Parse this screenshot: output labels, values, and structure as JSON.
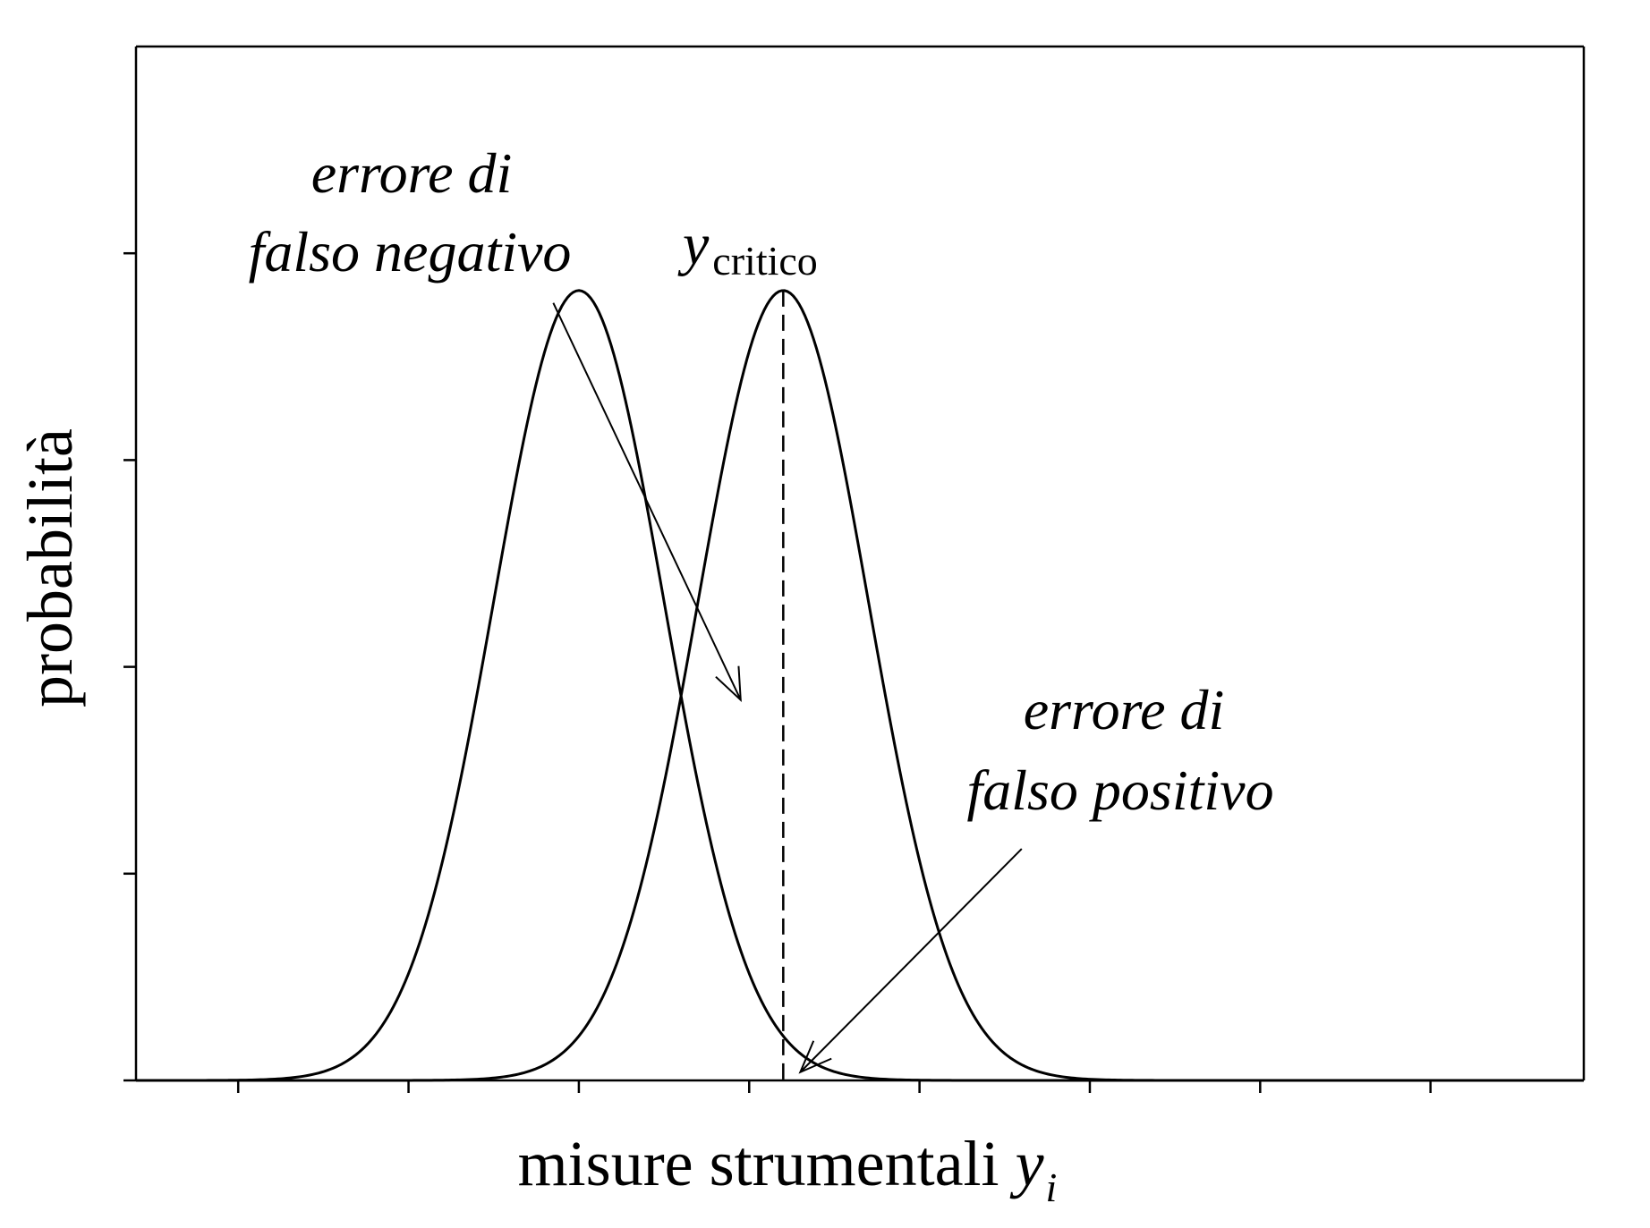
{
  "chart_data": {
    "type": "line",
    "title": "",
    "xlabel": "misure strumentali",
    "xlabel_var": "y",
    "xlabel_sub": "i",
    "ylabel": "probabilità",
    "xlim": [
      -2.6,
      5.9
    ],
    "ylim": [
      0,
      1.25
    ],
    "x_tick_values": [
      -2,
      -1,
      0,
      1,
      2,
      3,
      4,
      5
    ],
    "y_tick_values": [
      0,
      0.25,
      0.5,
      0.75,
      1.0
    ],
    "x_tick_labels": [],
    "y_tick_labels": [],
    "grid": false,
    "series": [
      {
        "mean": 0.0,
        "sd": 0.5,
        "peak": 0.955
      },
      {
        "mean": 1.2,
        "sd": 0.5,
        "peak": 0.955
      }
    ],
    "critical_value": {
      "x": 1.2,
      "label_var": "y",
      "label_sub": "critico"
    },
    "annotations": [
      {
        "line1": "errore di",
        "line2": "falso negativo",
        "arrow_from": [
          -0.15,
          0.94
        ],
        "arrow_to": [
          0.95,
          0.46
        ]
      },
      {
        "line1": "errore di",
        "line2": "falso positivo",
        "arrow_from": [
          2.6,
          0.28
        ],
        "arrow_to": [
          1.3,
          0.01
        ]
      }
    ]
  },
  "colors": {
    "ink": "#000000",
    "background": "#ffffff"
  }
}
